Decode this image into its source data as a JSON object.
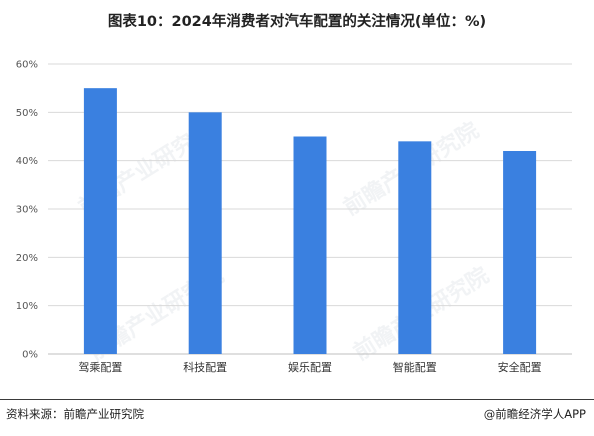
{
  "chart_data": {
    "type": "bar",
    "title": "图表10：2024年消费者对汽车配置的关注情况(单位：%)",
    "categories": [
      "驾乘配置",
      "科技配置",
      "娱乐配置",
      "智能配置",
      "安全配置"
    ],
    "values": [
      55,
      50,
      45,
      44,
      42
    ],
    "ylim": [
      0,
      60
    ],
    "yticks": [
      0,
      10,
      20,
      30,
      40,
      50,
      60
    ],
    "ytick_labels": [
      "0%",
      "10%",
      "20%",
      "30%",
      "40%",
      "50%",
      "60%"
    ],
    "grid": true,
    "bar_color": "#3a80e0",
    "xlabel": "",
    "ylabel": ""
  },
  "footer": {
    "source": "资料来源：前瞻产业研究院",
    "credit": "@前瞻经济学人APP"
  },
  "watermark": {
    "text": "前瞻产业研究院"
  },
  "colors": {
    "bar": "#3a80e0",
    "grid": "#d9d9d9",
    "axis": "#bfbfbf"
  }
}
